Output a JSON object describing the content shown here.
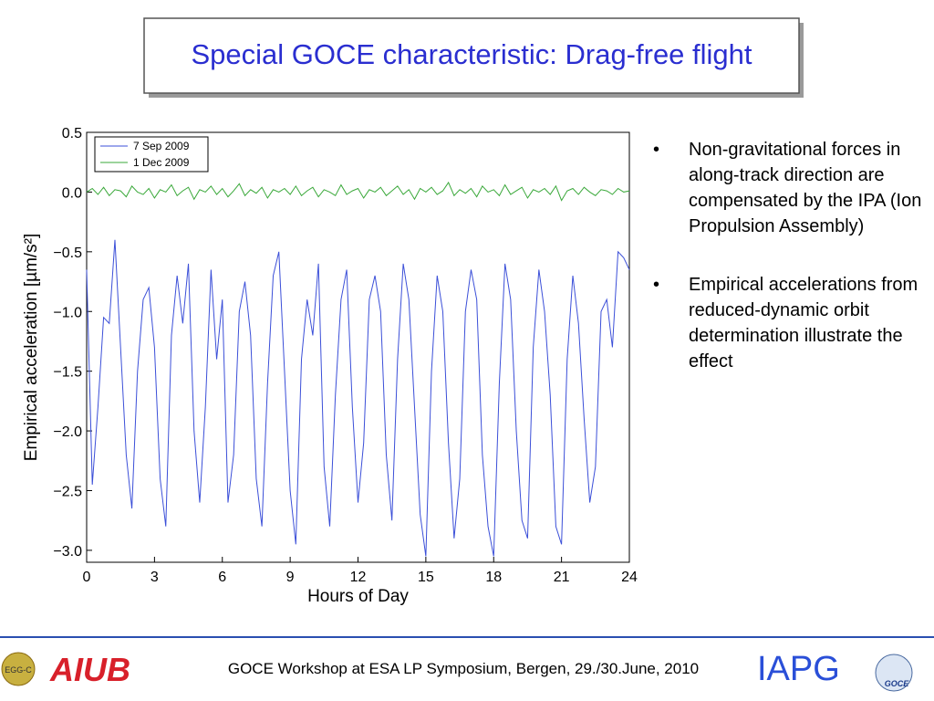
{
  "slide_title": "Special GOCE characteristic: Drag-free flight",
  "bullets": [
    "Non-gravitational forces in along-track direction are compensated by the IPA (Ion Propulsion Assembly)",
    "Empirical accelerations from reduced-dynamic orbit determination illustrate the effect"
  ],
  "footer": {
    "text": "GOCE Workshop at ESA LP Symposium, Bergen, 29./30.June, 2010",
    "logo_left": "AIUB",
    "logo_left_small": "EGG-C",
    "logo_right": "IAPG",
    "logo_goce": "GOCE"
  },
  "chart_data": {
    "type": "line",
    "xlabel": "Hours of Day",
    "ylabel": "Empirical acceleration [µm/s²]",
    "xlim": [
      0,
      24
    ],
    "xticks": [
      0,
      3,
      6,
      9,
      12,
      15,
      18,
      21,
      24
    ],
    "ylim": [
      -3.1,
      0.5
    ],
    "yticks": [
      0.5,
      {
        "value": 0,
        "label": "0.0"
      },
      {
        "value": -0.5,
        "label": "−0.5"
      },
      {
        "value": -1,
        "label": "−1.0"
      },
      {
        "value": -1.5,
        "label": "−1.5"
      },
      {
        "value": -2,
        "label": "−2.0"
      },
      {
        "value": -2.5,
        "label": "−2.5"
      },
      {
        "value": -3,
        "label": "−3.0"
      }
    ],
    "legend": "upper left",
    "x": [
      0,
      0.25,
      0.5,
      0.75,
      1,
      1.25,
      1.5,
      1.75,
      2,
      2.25,
      2.5,
      2.75,
      3,
      3.25,
      3.5,
      3.75,
      4,
      4.25,
      4.5,
      4.75,
      5,
      5.25,
      5.5,
      5.75,
      6,
      6.25,
      6.5,
      6.75,
      7,
      7.25,
      7.5,
      7.75,
      8,
      8.25,
      8.5,
      8.75,
      9,
      9.25,
      9.5,
      9.75,
      10,
      10.25,
      10.5,
      10.75,
      11,
      11.25,
      11.5,
      11.75,
      12,
      12.25,
      12.5,
      12.75,
      13,
      13.25,
      13.5,
      13.75,
      14,
      14.25,
      14.5,
      14.75,
      15,
      15.25,
      15.5,
      15.75,
      16,
      16.25,
      16.5,
      16.75,
      17,
      17.25,
      17.5,
      17.75,
      18,
      18.25,
      18.5,
      18.75,
      19,
      19.25,
      19.5,
      19.75,
      20,
      20.25,
      20.5,
      20.75,
      21,
      21.25,
      21.5,
      21.75,
      22,
      22.25,
      22.5,
      22.75,
      23,
      23.25,
      23.5,
      23.75,
      24
    ],
    "series": [
      {
        "name": "7 Sep 2009",
        "color": "#3b4fd8",
        "values": [
          -0.65,
          -2.45,
          -1.8,
          -1.05,
          -1.1,
          -0.4,
          -1.3,
          -2.2,
          -2.65,
          -1.5,
          -0.9,
          -0.8,
          -1.3,
          -2.4,
          -2.8,
          -1.2,
          -0.7,
          -1.1,
          -0.6,
          -2.0,
          -2.6,
          -1.8,
          -0.65,
          -1.4,
          -0.9,
          -2.6,
          -2.2,
          -1.0,
          -0.75,
          -1.2,
          -2.4,
          -2.8,
          -1.6,
          -0.7,
          -0.5,
          -1.5,
          -2.5,
          -2.95,
          -1.4,
          -0.9,
          -1.2,
          -0.6,
          -2.3,
          -2.8,
          -1.7,
          -0.9,
          -0.65,
          -1.8,
          -2.6,
          -2.1,
          -0.9,
          -0.7,
          -1.0,
          -2.2,
          -2.75,
          -1.4,
          -0.6,
          -0.9,
          -1.8,
          -2.7,
          -3.05,
          -1.5,
          -0.7,
          -1.0,
          -2.1,
          -2.9,
          -2.4,
          -1.0,
          -0.65,
          -0.9,
          -2.2,
          -2.8,
          -3.05,
          -1.6,
          -0.6,
          -0.9,
          -2.0,
          -2.75,
          -2.9,
          -1.3,
          -0.65,
          -1.0,
          -1.7,
          -2.8,
          -2.95,
          -1.4,
          -0.7,
          -1.1,
          -1.9,
          -2.6,
          -2.3,
          -1.0,
          -0.9,
          -1.3,
          -0.5,
          -0.55,
          -0.65
        ]
      },
      {
        "name": "1 Dec 2009",
        "color": "#3aa83a",
        "values": [
          0.0,
          0.03,
          -0.02,
          0.04,
          -0.03,
          0.02,
          0.01,
          -0.04,
          0.05,
          0.0,
          -0.02,
          0.03,
          -0.05,
          0.02,
          0.0,
          0.06,
          -0.03,
          0.01,
          0.04,
          -0.06,
          0.02,
          0.0,
          0.05,
          -0.02,
          0.03,
          -0.04,
          0.01,
          0.07,
          -0.03,
          0.02,
          -0.01,
          0.04,
          -0.05,
          0.02,
          0.0,
          0.03,
          -0.02,
          0.05,
          -0.03,
          0.01,
          0.04,
          -0.04,
          0.02,
          0.0,
          -0.03,
          0.06,
          -0.02,
          0.01,
          0.03,
          -0.05,
          0.02,
          0.0,
          0.04,
          -0.03,
          0.01,
          0.05,
          -0.02,
          0.02,
          -0.06,
          0.03,
          0.0,
          0.04,
          -0.02,
          0.01,
          0.08,
          -0.03,
          0.02,
          -0.01,
          0.03,
          -0.04,
          0.05,
          0.0,
          0.02,
          -0.03,
          0.06,
          -0.02,
          0.01,
          0.04,
          -0.05,
          0.02,
          0.0,
          0.03,
          -0.02,
          0.05,
          -0.07,
          0.01,
          0.03,
          -0.02,
          0.04,
          0.0,
          -0.03,
          0.02,
          0.01,
          -0.02,
          0.03,
          0.0,
          0.01
        ]
      }
    ]
  }
}
